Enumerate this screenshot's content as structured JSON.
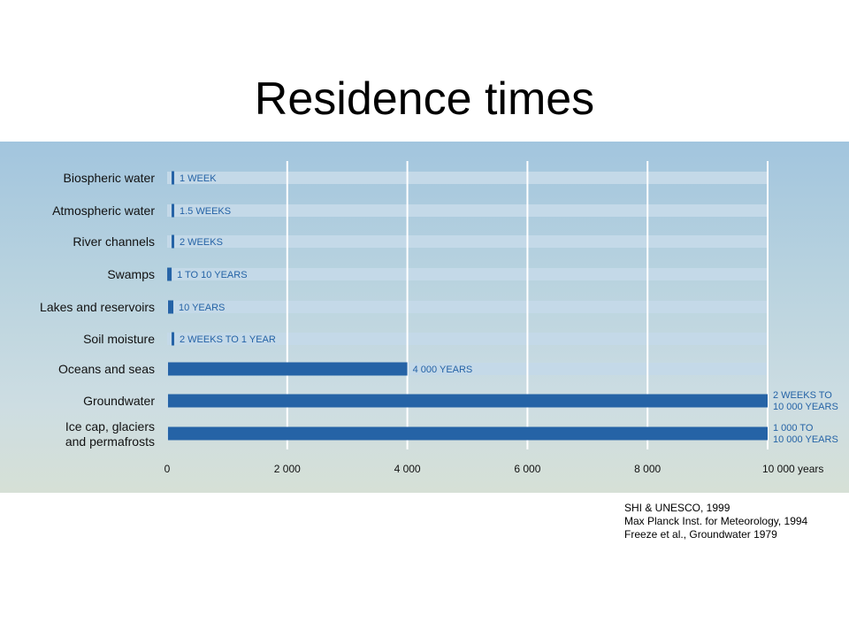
{
  "slide_title": "Residence times",
  "sources": [
    "SHI & UNESCO,  1999",
    "Max Planck Inst. for Meteorology, 1994",
    "Freeze et al., Groundwater  1979"
  ],
  "colors": {
    "bar": "#2563a6",
    "track": "#c4d9e8",
    "gridline": "#ffffff",
    "label_text": "#2563a6",
    "category_text": "#111111"
  },
  "chart_data": {
    "type": "bar",
    "orientation": "horizontal",
    "title": "",
    "xlabel": "",
    "ylabel": "",
    "xlim": [
      0,
      10000
    ],
    "x_unit": "years",
    "x_ticks": [
      {
        "value": 0,
        "label": "0"
      },
      {
        "value": 2000,
        "label": "2 000"
      },
      {
        "value": 4000,
        "label": "4 000"
      },
      {
        "value": 6000,
        "label": "6 000"
      },
      {
        "value": 8000,
        "label": "8 000"
      },
      {
        "value": 10000,
        "label": "10 000 years"
      }
    ],
    "grid": true,
    "categories": [
      "Biospheric water",
      "Atmospheric water",
      "River channels",
      "Swamps",
      "Lakes and reservoirs",
      "Soil moisture",
      "Oceans and seas",
      "Groundwater",
      "Ice cap, glaciers and permafrosts"
    ],
    "category_lines": [
      [
        "Biospheric water"
      ],
      [
        "Atmospheric water"
      ],
      [
        "River channels"
      ],
      [
        "Swamps"
      ],
      [
        "Lakes and reservoirs"
      ],
      [
        "Soil moisture"
      ],
      [
        "Oceans and seas"
      ],
      [
        "Groundwater"
      ],
      [
        "Ice cap, glaciers",
        "and permafrosts"
      ]
    ],
    "ranges": [
      [
        0.02,
        0.02
      ],
      [
        0.03,
        0.03
      ],
      [
        0.04,
        0.04
      ],
      [
        1,
        10
      ],
      [
        10,
        10
      ],
      [
        0.04,
        1
      ],
      [
        4000,
        4000
      ],
      [
        0.04,
        10000
      ],
      [
        1000,
        10000
      ]
    ],
    "value_labels": [
      [
        "1 WEEK"
      ],
      [
        "1.5 WEEKS"
      ],
      [
        "2 WEEKS"
      ],
      [
        "1 TO 10 YEARS"
      ],
      [
        "10 YEARS"
      ],
      [
        "2 WEEKS TO 1 YEAR"
      ],
      [
        "4 000 YEARS"
      ],
      [
        "2 WEEKS TO",
        "10 000 YEARS"
      ],
      [
        "1 000 TO",
        "10 000 YEARS"
      ]
    ]
  }
}
